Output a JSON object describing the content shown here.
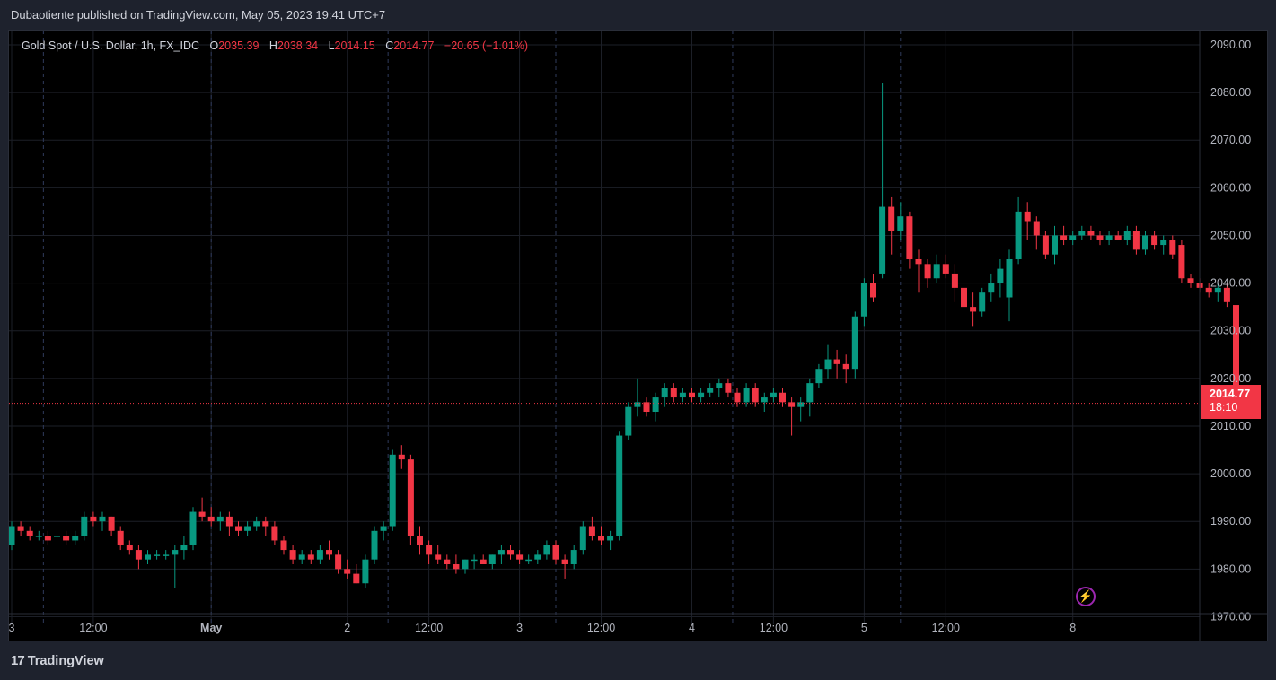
{
  "header": {
    "published_line": "Dubaotiente published on TradingView.com, May 05, 2023 19:41 UTC+7"
  },
  "legend": {
    "symbol": "Gold Spot / U.S. Dollar, 1h, FX_IDC",
    "open_label": "O",
    "open": "2035.39",
    "high_label": "H",
    "high": "2038.34",
    "low_label": "L",
    "low": "2014.15",
    "close_label": "C",
    "close": "2014.77",
    "change": "−20.65 (−1.01%)"
  },
  "price_tag": {
    "price": "2014.77",
    "countdown": "18:10"
  },
  "footer": {
    "logo_mark": "17",
    "logo_text": "TradingView"
  },
  "colors": {
    "up": "#089981",
    "down": "#f23645",
    "background": "#000000",
    "grid": "#1c1f27",
    "axis_text": "#b2b5be"
  },
  "icons": {
    "alert": "lightning-bolt-icon",
    "logo": "tradingview-logo-icon"
  },
  "chart_data": {
    "type": "candlestick",
    "title": "Gold Spot / U.S. Dollar, 1h, FX_IDC",
    "ylim": [
      1965,
      2093
    ],
    "y_ticks": [
      "2090.00",
      "2080.00",
      "2070.00",
      "2060.00",
      "2050.00",
      "2040.00",
      "2030.00",
      "2020.00",
      "2010.00",
      "2000.00",
      "1990.00",
      "1980.00",
      "1970.00"
    ],
    "x_ticks": [
      {
        "label": "3",
        "i": 0
      },
      {
        "label": "12:00",
        "i": 9
      },
      {
        "label": "May",
        "i": 22
      },
      {
        "label": "2",
        "i": 37
      },
      {
        "label": "12:00",
        "i": 46
      },
      {
        "label": "3",
        "i": 56
      },
      {
        "label": "12:00",
        "i": 65
      },
      {
        "label": "4",
        "i": 75
      },
      {
        "label": "12:00",
        "i": 84
      },
      {
        "label": "5",
        "i": 94
      },
      {
        "label": "12:00",
        "i": 103
      },
      {
        "label": "8",
        "i": 117
      }
    ],
    "session_breaks": [
      3.5,
      22,
      41.5,
      60,
      79.5,
      98
    ],
    "last_price": 2014.77,
    "ohlc": [
      [
        1985,
        1990,
        1984,
        1989
      ],
      [
        1989,
        1990,
        1987,
        1988
      ],
      [
        1988,
        1989,
        1986,
        1987
      ],
      [
        1987,
        1988,
        1986,
        1987
      ],
      [
        1987,
        1988,
        1985,
        1986
      ],
      [
        1987,
        1988,
        1985,
        1987
      ],
      [
        1987,
        1988,
        1985,
        1986
      ],
      [
        1986,
        1988,
        1985,
        1987
      ],
      [
        1987,
        1992,
        1986,
        1991
      ],
      [
        1991,
        1992,
        1989,
        1990
      ],
      [
        1990,
        1992,
        1988,
        1991
      ],
      [
        1991,
        1991,
        1987,
        1988
      ],
      [
        1988,
        1989,
        1984,
        1985
      ],
      [
        1985,
        1986,
        1983,
        1984
      ],
      [
        1984,
        1985,
        1980,
        1982
      ],
      [
        1982,
        1984,
        1981,
        1983
      ],
      [
        1983,
        1984,
        1982,
        1983
      ],
      [
        1983,
        1984,
        1982,
        1983
      ],
      [
        1983,
        1985,
        1976,
        1984
      ],
      [
        1984,
        1987,
        1982,
        1985
      ],
      [
        1985,
        1993,
        1984,
        1992
      ],
      [
        1992,
        1995,
        1990,
        1991
      ],
      [
        1991,
        1993,
        1989,
        1990
      ],
      [
        1990,
        1992,
        1988,
        1991
      ],
      [
        1991,
        1992,
        1987,
        1989
      ],
      [
        1989,
        1990,
        1987,
        1988
      ],
      [
        1988,
        1990,
        1987,
        1989
      ],
      [
        1989,
        1991,
        1988,
        1990
      ],
      [
        1990,
        1991,
        1987,
        1989
      ],
      [
        1989,
        1990,
        1985,
        1986
      ],
      [
        1986,
        1987,
        1983,
        1984
      ],
      [
        1984,
        1985,
        1981,
        1982
      ],
      [
        1982,
        1984,
        1981,
        1983
      ],
      [
        1983,
        1984,
        1981,
        1982
      ],
      [
        1982,
        1985,
        1981,
        1984
      ],
      [
        1984,
        1986,
        1982,
        1983
      ],
      [
        1983,
        1984,
        1979,
        1980
      ],
      [
        1980,
        1982,
        1978,
        1979
      ],
      [
        1979,
        1981,
        1977,
        1977
      ],
      [
        1977,
        1983,
        1976,
        1982
      ],
      [
        1982,
        1989,
        1981,
        1988
      ],
      [
        1988,
        1990,
        1986,
        1989
      ],
      [
        1989,
        2005,
        1988,
        2004
      ],
      [
        2004,
        2006,
        2001,
        2003
      ],
      [
        2003,
        2004,
        1985,
        1987
      ],
      [
        1987,
        1989,
        1983,
        1985
      ],
      [
        1985,
        1986,
        1981,
        1983
      ],
      [
        1983,
        1985,
        1981,
        1982
      ],
      [
        1982,
        1983,
        1980,
        1981
      ],
      [
        1981,
        1983,
        1979,
        1980
      ],
      [
        1980,
        1982,
        1979,
        1982
      ],
      [
        1982,
        1983,
        1980,
        1982
      ],
      [
        1982,
        1983,
        1981,
        1981
      ],
      [
        1981,
        1983,
        1980,
        1983
      ],
      [
        1983,
        1985,
        1981,
        1984
      ],
      [
        1984,
        1985,
        1982,
        1983
      ],
      [
        1983,
        1984,
        1981,
        1982
      ],
      [
        1982,
        1983,
        1981,
        1982
      ],
      [
        1982,
        1984,
        1981,
        1983
      ],
      [
        1983,
        1986,
        1982,
        1985
      ],
      [
        1985,
        1986,
        1981,
        1982
      ],
      [
        1982,
        1983,
        1978,
        1981
      ],
      [
        1981,
        1985,
        1980,
        1984
      ],
      [
        1984,
        1990,
        1983,
        1989
      ],
      [
        1989,
        1991,
        1986,
        1987
      ],
      [
        1987,
        1989,
        1985,
        1986
      ],
      [
        1986,
        1988,
        1984,
        1987
      ],
      [
        1987,
        2009,
        1986,
        2008
      ],
      [
        2008,
        2015,
        2007,
        2014
      ],
      [
        2014,
        2020,
        2012,
        2015
      ],
      [
        2015,
        2016,
        2012,
        2013
      ],
      [
        2013,
        2017,
        2011,
        2016
      ],
      [
        2016,
        2019,
        2014,
        2018
      ],
      [
        2018,
        2019,
        2015,
        2016
      ],
      [
        2016,
        2018,
        2015,
        2017
      ],
      [
        2017,
        2018,
        2015,
        2016
      ],
      [
        2016,
        2018,
        2015,
        2017
      ],
      [
        2017,
        2019,
        2016,
        2018
      ],
      [
        2018,
        2020,
        2016,
        2019
      ],
      [
        2019,
        2020,
        2016,
        2017
      ],
      [
        2017,
        2018,
        2014,
        2015
      ],
      [
        2015,
        2019,
        2014,
        2018
      ],
      [
        2018,
        2019,
        2014,
        2015
      ],
      [
        2015,
        2017,
        2013,
        2016
      ],
      [
        2016,
        2018,
        2015,
        2017
      ],
      [
        2017,
        2018,
        2014,
        2015
      ],
      [
        2015,
        2016,
        2008,
        2014
      ],
      [
        2014,
        2016,
        2011,
        2015
      ],
      [
        2015,
        2020,
        2012,
        2019
      ],
      [
        2019,
        2023,
        2018,
        2022
      ],
      [
        2022,
        2027,
        2020,
        2024
      ],
      [
        2024,
        2026,
        2020,
        2023
      ],
      [
        2023,
        2025,
        2019,
        2022
      ],
      [
        2022,
        2034,
        2020,
        2033
      ],
      [
        2033,
        2041,
        2031,
        2040
      ],
      [
        2040,
        2042,
        2036,
        2037
      ],
      [
        2042,
        2082,
        2041,
        2056
      ],
      [
        2056,
        2058,
        2046,
        2051
      ],
      [
        2051,
        2057,
        2049,
        2054
      ],
      [
        2054,
        2055,
        2043,
        2045
      ],
      [
        2045,
        2047,
        2038,
        2044
      ],
      [
        2044,
        2045,
        2039,
        2041
      ],
      [
        2041,
        2046,
        2040,
        2044
      ],
      [
        2044,
        2046,
        2041,
        2042
      ],
      [
        2042,
        2044,
        2036,
        2039
      ],
      [
        2039,
        2040,
        2031,
        2035
      ],
      [
        2035,
        2038,
        2031,
        2034
      ],
      [
        2034,
        2039,
        2033,
        2038
      ],
      [
        2038,
        2042,
        2036,
        2040
      ],
      [
        2040,
        2045,
        2037,
        2043
      ],
      [
        2037,
        2047,
        2032,
        2045
      ],
      [
        2045,
        2058,
        2044,
        2055
      ],
      [
        2055,
        2057,
        2049,
        2053
      ],
      [
        2053,
        2054,
        2047,
        2050
      ],
      [
        2050,
        2051,
        2045,
        2046
      ],
      [
        2046,
        2052,
        2044,
        2050
      ],
      [
        2050,
        2052,
        2048,
        2049
      ],
      [
        2049,
        2051,
        2048,
        2050
      ],
      [
        2050,
        2052,
        2049,
        2051
      ],
      [
        2051,
        2052,
        2049,
        2050
      ],
      [
        2050,
        2051,
        2048,
        2049
      ],
      [
        2049,
        2051,
        2048,
        2050
      ],
      [
        2050,
        2051,
        2049,
        2049
      ],
      [
        2049,
        2052,
        2048,
        2051
      ],
      [
        2051,
        2052,
        2046,
        2047
      ],
      [
        2047,
        2051,
        2046,
        2050
      ],
      [
        2050,
        2051,
        2047,
        2048
      ],
      [
        2048,
        2050,
        2046,
        2049
      ],
      [
        2049,
        2050,
        2045,
        2046
      ],
      [
        2048,
        2049,
        2040,
        2041
      ],
      [
        2041,
        2042,
        2039,
        2040
      ],
      [
        2040,
        2041,
        2038,
        2039
      ],
      [
        2039,
        2040,
        2037,
        2038
      ],
      [
        2038,
        2040,
        2036,
        2039
      ],
      [
        2039,
        2040,
        2035,
        2036
      ],
      [
        2035.39,
        2038.34,
        2014.15,
        2014.77
      ]
    ]
  }
}
